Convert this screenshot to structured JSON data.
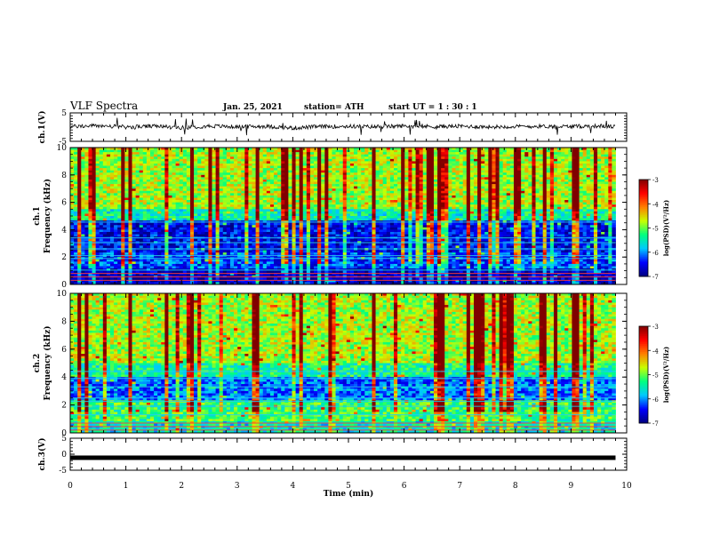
{
  "header": {
    "title": "VLF Spectra",
    "date": "Jan. 25, 2021",
    "station": "station= ATH",
    "start": "start  UT =   1 : 30 : 1"
  },
  "chart_data": [
    {
      "panel": "ch1-waveform",
      "type": "line",
      "ylabel": "ch.1(V)",
      "ylim": [
        -5,
        5
      ],
      "yticks": [
        5,
        -5
      ],
      "xlim": [
        0,
        10
      ],
      "series": [
        {
          "x": [
            0,
            0.5,
            1,
            1.5,
            2,
            2.5,
            3,
            3.5,
            4,
            4.5,
            5,
            5.5,
            6,
            6.5,
            7,
            7.5,
            8,
            8.5,
            9,
            9.5,
            9.8
          ],
          "values": [
            0.2,
            0.5,
            0,
            0.3,
            -0.2,
            0.4,
            0.1,
            0.3,
            -0.3,
            0.2,
            0.3,
            0.1,
            0.4,
            0.2,
            0.3,
            0.1,
            0.2,
            0.3,
            0.2,
            0.4,
            0.1
          ]
        }
      ]
    },
    {
      "panel": "ch1-spectrogram",
      "type": "heatmap",
      "ylabel": "ch.1\nFrequency (kHz)",
      "ylim": [
        0,
        10
      ],
      "yticks": [
        0,
        2,
        4,
        6,
        8,
        10
      ],
      "xlim": [
        0,
        10
      ],
      "colorbar": {
        "label": "log(PSD)(V²/Hz)",
        "range": [
          -7,
          -3
        ],
        "ticks": [
          -3,
          -4,
          -5,
          -6,
          -7
        ]
      },
      "data_extent_min": 9.8
    },
    {
      "panel": "ch2-spectrogram",
      "type": "heatmap",
      "ylabel": "ch.2\nFrequency (kHz)",
      "ylim": [
        0,
        10
      ],
      "yticks": [
        0,
        2,
        4,
        6,
        8,
        10
      ],
      "xlim": [
        0,
        10
      ],
      "colorbar": {
        "label": "log(PSD)(V²/Hz)",
        "range": [
          -7,
          -3
        ],
        "ticks": [
          -3,
          -4,
          -5,
          -6,
          -7
        ]
      },
      "data_extent_min": 9.8
    },
    {
      "panel": "ch3-waveform",
      "type": "line",
      "ylabel": "ch.3(V)",
      "ylim": [
        -5,
        5
      ],
      "yticks": [
        5,
        0,
        -5
      ],
      "xlim": [
        0,
        10
      ],
      "xlabel": "Time (min)",
      "xticks": [
        0,
        1,
        2,
        3,
        4,
        5,
        6,
        7,
        8,
        9,
        10
      ],
      "series": [
        {
          "x": [
            0,
            9.8
          ],
          "values": [
            -1.1,
            -1.1
          ]
        }
      ]
    }
  ],
  "colors": {
    "axis": "#000000",
    "cmap": [
      "#000080",
      "#0000ff",
      "#00c8ff",
      "#00ff80",
      "#c8ff00",
      "#ff8000",
      "#ff0000",
      "#800000"
    ]
  }
}
